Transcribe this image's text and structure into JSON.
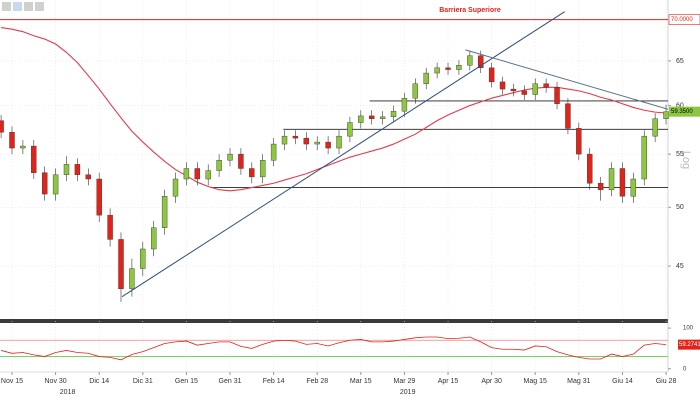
{
  "chart_data": [
    {
      "type": "candlestick",
      "title": "Barriera Superiore",
      "axis_label": "Log",
      "log_scale": true,
      "grid": true,
      "xlim": [
        -0.1,
        61.18
      ],
      "ylim": [
        41,
        72.5
      ],
      "yticks": [
        45,
        50,
        55,
        60,
        65
      ],
      "xticks": [
        {
          "value": 1,
          "label": "Nov 15"
        },
        {
          "value": 5,
          "label": "Nov 30"
        },
        {
          "value": 9,
          "label": "Dic 14"
        },
        {
          "value": 13,
          "label": "Dic 31"
        },
        {
          "value": 17,
          "label": "Gen 15"
        },
        {
          "value": 21,
          "label": "Gen 31"
        },
        {
          "value": 25,
          "label": "Feb 14"
        },
        {
          "value": 29,
          "label": "Feb 28"
        },
        {
          "value": 33,
          "label": "Mar 15"
        },
        {
          "value": 37,
          "label": "Mar 29"
        },
        {
          "value": 41,
          "label": "Apr 15"
        },
        {
          "value": 45,
          "label": "Apr 30"
        },
        {
          "value": 49,
          "label": "Mag 15"
        },
        {
          "value": 53,
          "label": "Mag 31"
        },
        {
          "value": 57,
          "label": "Giu 14"
        },
        {
          "value": 61,
          "label": "Giu 28"
        }
      ],
      "year_ticks": [
        {
          "value": 6.1,
          "label": "2018"
        },
        {
          "value": 37.3,
          "label": "2019"
        }
      ],
      "up_color": "#8dc63f",
      "down_color": "#e2231a",
      "open": [
        58.4,
        57.2,
        55.6,
        55.8,
        53.2,
        51.2,
        53.0,
        54.0,
        53.0,
        52.6,
        49.3,
        47.2,
        43.2,
        44.8,
        46.4,
        48.2,
        51.0,
        52.6,
        53.6,
        52.6,
        53.4,
        54.4,
        55.0,
        53.6,
        52.8,
        54.4,
        56.0,
        56.8,
        56.6,
        56.0,
        56.2,
        55.6,
        56.8,
        58.2,
        58.9,
        58.6,
        58.8,
        59.4,
        60.8,
        62.4,
        63.6,
        64.2,
        64.0,
        64.5,
        65.6,
        64.2,
        62.6,
        61.8,
        61.6,
        61.2,
        62.4,
        62.0,
        60.2,
        57.6,
        55.0,
        52.2,
        51.6,
        53.6,
        51.0,
        52.6,
        56.8,
        58.6
      ],
      "high": [
        59.0,
        57.8,
        56.4,
        56.4,
        53.8,
        53.6,
        54.8,
        54.6,
        53.6,
        53.2,
        49.9,
        47.8,
        45.6,
        47.0,
        48.8,
        51.6,
        53.2,
        54.2,
        54.2,
        54.0,
        55.0,
        55.6,
        55.6,
        54.2,
        55.0,
        56.6,
        57.4,
        57.4,
        57.2,
        56.8,
        56.8,
        57.4,
        58.8,
        59.5,
        59.5,
        59.4,
        60.0,
        61.4,
        63.0,
        64.2,
        64.8,
        64.8,
        65.1,
        66.2,
        66.2,
        64.8,
        63.2,
        62.4,
        62.2,
        63.0,
        63.0,
        62.6,
        60.8,
        58.2,
        55.6,
        52.8,
        54.2,
        54.2,
        53.2,
        57.4,
        59.2,
        60.1
      ],
      "low": [
        56.6,
        55.0,
        55.0,
        52.6,
        50.6,
        50.6,
        52.4,
        52.4,
        52.0,
        48.7,
        46.6,
        42.2,
        42.6,
        44.2,
        45.8,
        47.6,
        50.4,
        52.0,
        52.0,
        52.0,
        52.8,
        53.8,
        53.0,
        52.2,
        52.2,
        53.8,
        55.4,
        56.0,
        55.4,
        55.4,
        55.0,
        55.0,
        56.2,
        57.6,
        58.0,
        58.0,
        58.2,
        58.8,
        60.2,
        61.8,
        63.0,
        63.4,
        63.4,
        63.9,
        63.6,
        62.0,
        61.2,
        61.0,
        60.6,
        60.6,
        61.4,
        59.6,
        57.0,
        54.4,
        51.6,
        50.6,
        51.0,
        50.4,
        50.4,
        52.0,
        56.2,
        58.0
      ],
      "close": [
        57.2,
        55.6,
        55.8,
        53.2,
        51.2,
        53.0,
        54.0,
        53.0,
        52.6,
        49.3,
        47.2,
        43.2,
        44.8,
        46.4,
        48.2,
        51.0,
        52.6,
        53.6,
        52.6,
        53.4,
        54.4,
        55.0,
        53.6,
        52.8,
        54.4,
        56.0,
        56.8,
        56.6,
        56.0,
        56.2,
        55.6,
        56.8,
        58.2,
        58.9,
        58.6,
        58.8,
        59.4,
        60.8,
        62.4,
        63.6,
        64.2,
        64.0,
        64.5,
        65.6,
        64.2,
        62.6,
        61.8,
        61.6,
        61.2,
        62.4,
        62.0,
        60.2,
        57.6,
        55.0,
        52.2,
        51.6,
        53.6,
        51.0,
        52.6,
        56.8,
        58.6,
        59.35
      ],
      "moving_average": {
        "color": "#e8394a",
        "values": [
          69.0,
          68.8,
          68.5,
          68.0,
          67.6,
          67.0,
          66.0,
          64.8,
          63.3,
          61.8,
          60.2,
          58.7,
          57.3,
          56.2,
          55.2,
          54.3,
          53.5,
          52.9,
          52.3,
          51.9,
          51.6,
          51.5,
          51.6,
          51.8,
          52.0,
          52.2,
          52.5,
          52.8,
          53.1,
          53.5,
          53.9,
          54.3,
          54.7,
          55.0,
          55.3,
          55.6,
          56.0,
          56.5,
          57.0,
          57.7,
          58.4,
          59.0,
          59.5,
          60.0,
          60.4,
          60.8,
          61.1,
          61.4,
          61.7,
          61.9,
          62.0,
          62.0,
          61.8,
          61.6,
          61.3,
          60.9,
          60.6,
          60.2,
          59.8,
          59.5,
          59.3,
          59.2
        ]
      },
      "resistance": {
        "value": 70,
        "label": "70.0000",
        "color": "#e2231a"
      },
      "levels": [
        {
          "value": 60.5,
          "from": 33.8
        },
        {
          "value": 57.5,
          "from": 25.9
        },
        {
          "value": 51.8,
          "from": 19.2
        }
      ],
      "trendlines": [
        {
          "color": "#2d4f7c",
          "x": [
            11.1,
            51.7
          ],
          "y": [
            42.6,
            71.0
          ]
        },
        {
          "color": "#5a6e8a",
          "x": [
            42.6,
            61.2
          ],
          "y": [
            66.3,
            59.6
          ]
        }
      ],
      "price_tag": {
        "value": 59.35,
        "label": "59.3500",
        "color": "#8dc63f"
      }
    },
    {
      "type": "line",
      "ylim": [
        -8,
        110
      ],
      "yticks": [
        0,
        100
      ],
      "color": "#e2231a",
      "upper_level": {
        "value": 70,
        "color": "#f08080"
      },
      "lower_level": {
        "value": 30,
        "color": "#66cc44"
      },
      "values": [
        45,
        38,
        40,
        34,
        30,
        40,
        45,
        40,
        38,
        30,
        28,
        22,
        35,
        42,
        52,
        62,
        66,
        68,
        58,
        62,
        66,
        66,
        55,
        50,
        60,
        68,
        70,
        68,
        60,
        62,
        56,
        64,
        70,
        72,
        66,
        66,
        68,
        72,
        76,
        78,
        78,
        74,
        75,
        78,
        66,
        52,
        48,
        48,
        46,
        56,
        54,
        42,
        34,
        28,
        24,
        24,
        36,
        30,
        36,
        58,
        62,
        59.2741
      ],
      "value_tag": {
        "value": 59.2741,
        "color": "#e2231a"
      }
    }
  ]
}
